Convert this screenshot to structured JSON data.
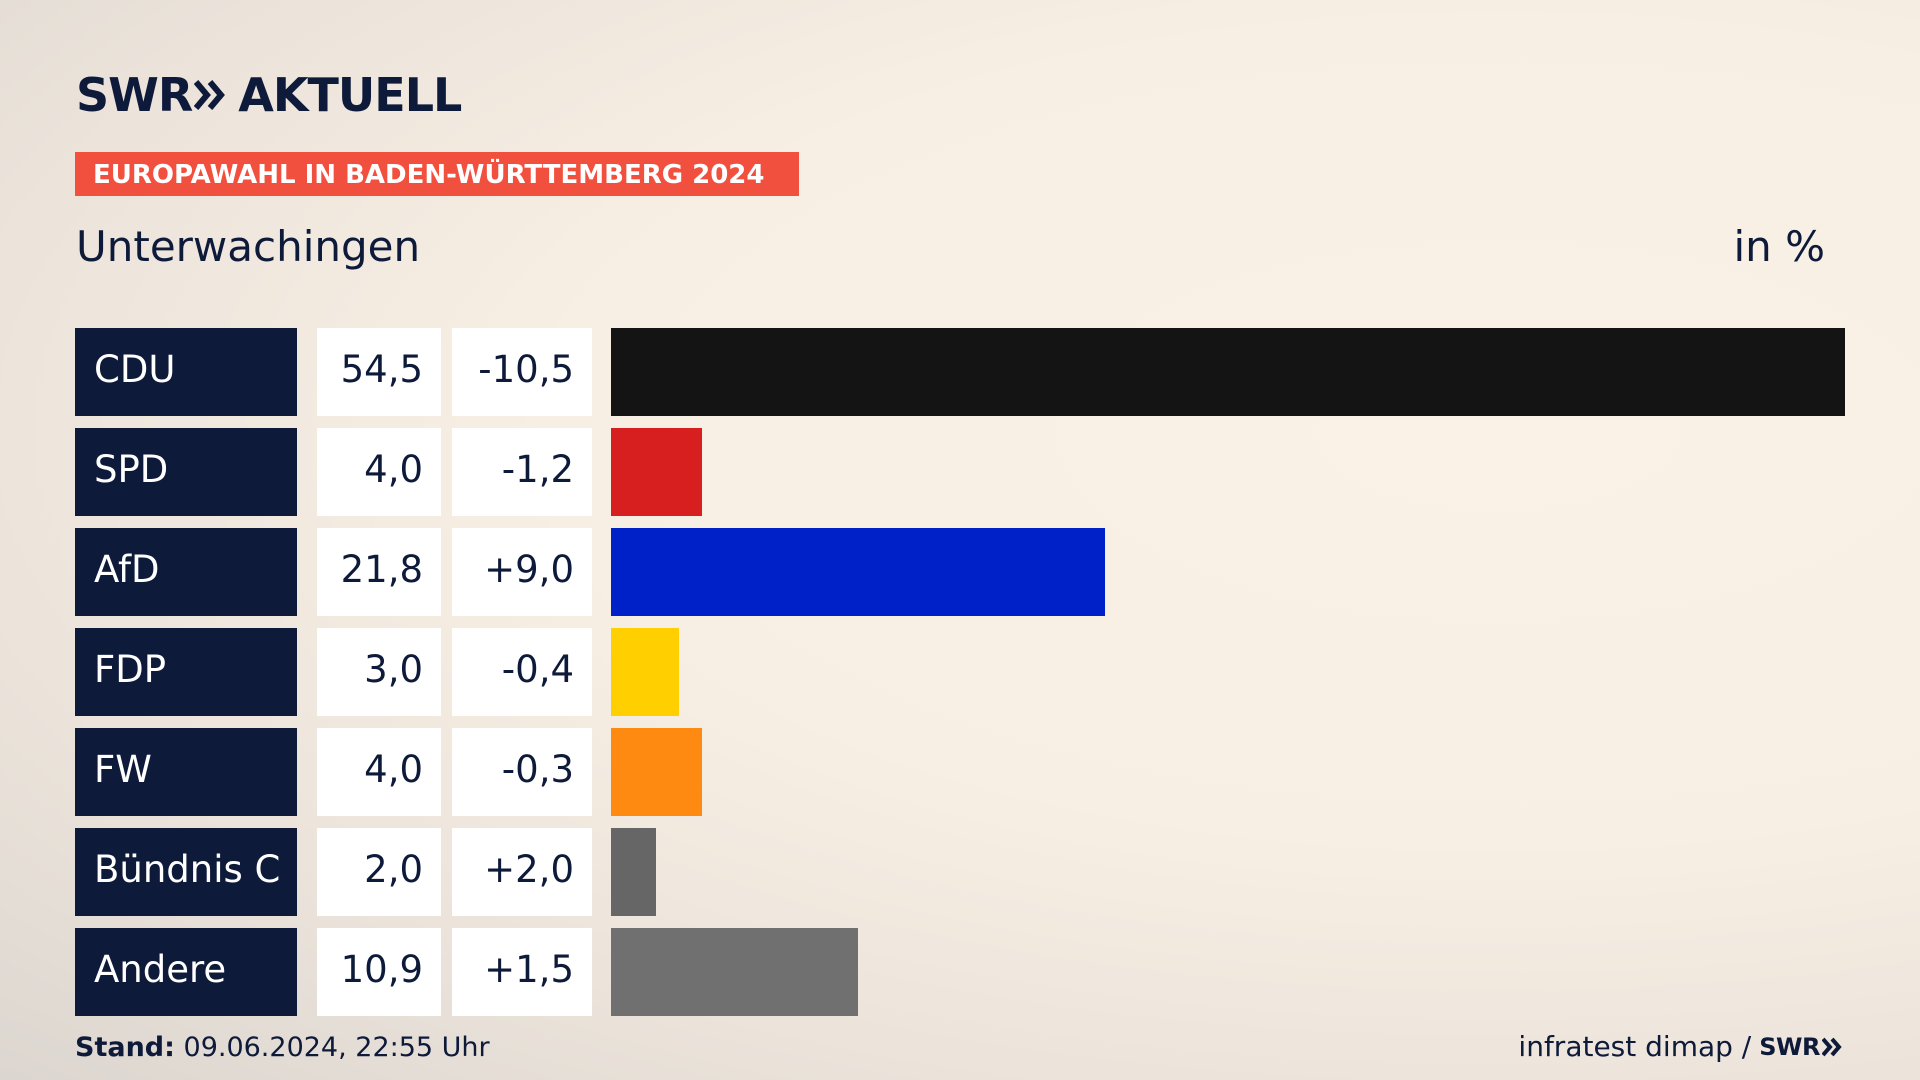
{
  "header": {
    "brand_swr": "SWR",
    "brand_aktuell": "AKTUELL",
    "banner": "EUROPAWAHL IN BADEN-WÜRTTEMBERG 2024",
    "place": "Unterwachingen",
    "unit": "in %"
  },
  "colors": {
    "navy": "#0e1a3a",
    "banner": "#f2503f"
  },
  "chart_data": {
    "type": "bar",
    "orientation": "horizontal",
    "categories": [
      "CDU",
      "SPD",
      "AfD",
      "FDP",
      "FW",
      "Bündnis C",
      "Andere"
    ],
    "values": [
      54.5,
      4.0,
      21.8,
      3.0,
      4.0,
      2.0,
      10.9
    ],
    "value_labels": [
      "54,5",
      "4,0",
      "21,8",
      "3,0",
      "4,0",
      "2,0",
      "10,9"
    ],
    "diff_labels": [
      "-10,5",
      "-1,2",
      "+9,0",
      "-0,4",
      "-0,3",
      "+2,0",
      "+1,5"
    ],
    "diffs": [
      -10.5,
      -1.2,
      9.0,
      -0.4,
      -0.3,
      2.0,
      1.5
    ],
    "bar_colors": [
      "#141414",
      "#d71f1f",
      "#0021c8",
      "#ffcf00",
      "#ff8a12",
      "#666666",
      "#707070"
    ],
    "xlim": [
      0,
      54.5
    ]
  },
  "footer": {
    "stand_label": "Stand:",
    "stand_value": "09.06.2024, 22:55 Uhr",
    "source": "infratest dimap /",
    "source_logo": "SWR"
  }
}
